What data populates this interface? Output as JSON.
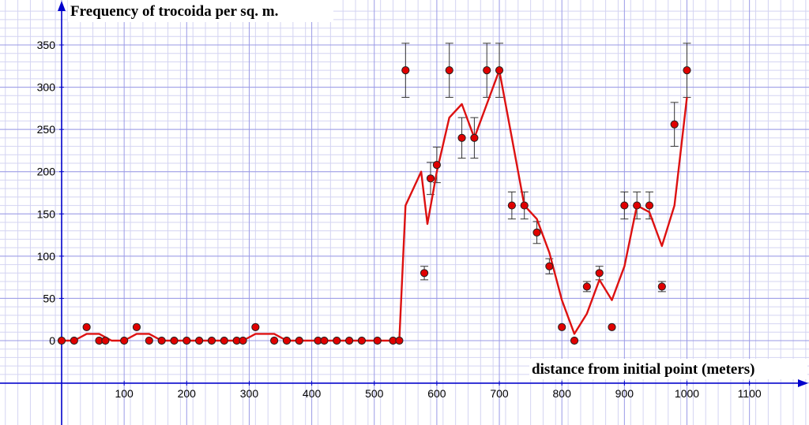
{
  "chart_data": {
    "type": "scatter",
    "title": "",
    "ylabel": "Frequency of trocoida per sq. m.",
    "xlabel": "distance from initial point (meters)",
    "xlim": [
      -90,
      1200
    ],
    "ylim": [
      -50,
      390
    ],
    "x_ticks": [
      100,
      200,
      300,
      400,
      500,
      600,
      700,
      800,
      900,
      1000,
      1100
    ],
    "y_ticks": [
      0,
      50,
      100,
      150,
      200,
      250,
      300,
      350
    ],
    "grid": true,
    "colors": {
      "point": "#e00000",
      "line": "#dd1111",
      "axis": "#0000cc",
      "grid_major": "#9a9ae6",
      "grid_minor": "#d4d4f2"
    },
    "series": [
      {
        "values": [
          {
            "x": 0,
            "y": 0
          },
          {
            "x": 20,
            "y": 0
          },
          {
            "x": 40,
            "y": 16
          },
          {
            "x": 60,
            "y": 0
          },
          {
            "x": 70,
            "y": 0
          },
          {
            "x": 100,
            "y": 0
          },
          {
            "x": 120,
            "y": 16
          },
          {
            "x": 140,
            "y": 0
          },
          {
            "x": 160,
            "y": 0
          },
          {
            "x": 180,
            "y": 0
          },
          {
            "x": 200,
            "y": 0
          },
          {
            "x": 220,
            "y": 0
          },
          {
            "x": 240,
            "y": 0
          },
          {
            "x": 260,
            "y": 0
          },
          {
            "x": 280,
            "y": 0
          },
          {
            "x": 290,
            "y": 0
          },
          {
            "x": 310,
            "y": 16
          },
          {
            "x": 340,
            "y": 0
          },
          {
            "x": 360,
            "y": 0
          },
          {
            "x": 380,
            "y": 0
          },
          {
            "x": 410,
            "y": 0
          },
          {
            "x": 420,
            "y": 0
          },
          {
            "x": 440,
            "y": 0
          },
          {
            "x": 460,
            "y": 0
          },
          {
            "x": 480,
            "y": 0
          },
          {
            "x": 505,
            "y": 0
          },
          {
            "x": 530,
            "y": 0
          },
          {
            "x": 540,
            "y": 0
          },
          {
            "x": 550,
            "y": 320,
            "err": 32
          },
          {
            "x": 580,
            "y": 80,
            "err": 8
          },
          {
            "x": 590,
            "y": 192,
            "err": 19
          },
          {
            "x": 600,
            "y": 208,
            "err": 21
          },
          {
            "x": 620,
            "y": 320,
            "err": 32
          },
          {
            "x": 640,
            "y": 240,
            "err": 24
          },
          {
            "x": 660,
            "y": 240,
            "err": 24
          },
          {
            "x": 680,
            "y": 320,
            "err": 32
          },
          {
            "x": 700,
            "y": 320,
            "err": 32
          },
          {
            "x": 720,
            "y": 160,
            "err": 16
          },
          {
            "x": 740,
            "y": 160,
            "err": 16
          },
          {
            "x": 760,
            "y": 128,
            "err": 13
          },
          {
            "x": 780,
            "y": 88,
            "err": 9
          },
          {
            "x": 800,
            "y": 16
          },
          {
            "x": 820,
            "y": 0
          },
          {
            "x": 840,
            "y": 64,
            "err": 6
          },
          {
            "x": 860,
            "y": 80,
            "err": 8
          },
          {
            "x": 880,
            "y": 16
          },
          {
            "x": 900,
            "y": 160,
            "err": 16
          },
          {
            "x": 920,
            "y": 160,
            "err": 16
          },
          {
            "x": 940,
            "y": 160,
            "err": 16
          },
          {
            "x": 960,
            "y": 64,
            "err": 6
          },
          {
            "x": 980,
            "y": 256,
            "err": 26
          },
          {
            "x": 1000,
            "y": 320,
            "err": 32
          }
        ]
      }
    ],
    "trend_line": [
      {
        "x": 0,
        "y": 0
      },
      {
        "x": 20,
        "y": 0
      },
      {
        "x": 40,
        "y": 8
      },
      {
        "x": 60,
        "y": 8
      },
      {
        "x": 80,
        "y": 0
      },
      {
        "x": 100,
        "y": 0
      },
      {
        "x": 120,
        "y": 8
      },
      {
        "x": 140,
        "y": 8
      },
      {
        "x": 160,
        "y": 0
      },
      {
        "x": 290,
        "y": 0
      },
      {
        "x": 310,
        "y": 8
      },
      {
        "x": 340,
        "y": 8
      },
      {
        "x": 360,
        "y": 0
      },
      {
        "x": 540,
        "y": 0
      },
      {
        "x": 550,
        "y": 160
      },
      {
        "x": 575,
        "y": 200
      },
      {
        "x": 585,
        "y": 138
      },
      {
        "x": 600,
        "y": 200
      },
      {
        "x": 620,
        "y": 264
      },
      {
        "x": 640,
        "y": 280
      },
      {
        "x": 660,
        "y": 240
      },
      {
        "x": 700,
        "y": 320
      },
      {
        "x": 720,
        "y": 240
      },
      {
        "x": 740,
        "y": 160
      },
      {
        "x": 760,
        "y": 144
      },
      {
        "x": 780,
        "y": 104
      },
      {
        "x": 800,
        "y": 48
      },
      {
        "x": 820,
        "y": 8
      },
      {
        "x": 840,
        "y": 32
      },
      {
        "x": 860,
        "y": 72
      },
      {
        "x": 880,
        "y": 48
      },
      {
        "x": 900,
        "y": 88
      },
      {
        "x": 920,
        "y": 160
      },
      {
        "x": 940,
        "y": 152
      },
      {
        "x": 960,
        "y": 112
      },
      {
        "x": 980,
        "y": 160
      },
      {
        "x": 1000,
        "y": 288
      }
    ]
  }
}
